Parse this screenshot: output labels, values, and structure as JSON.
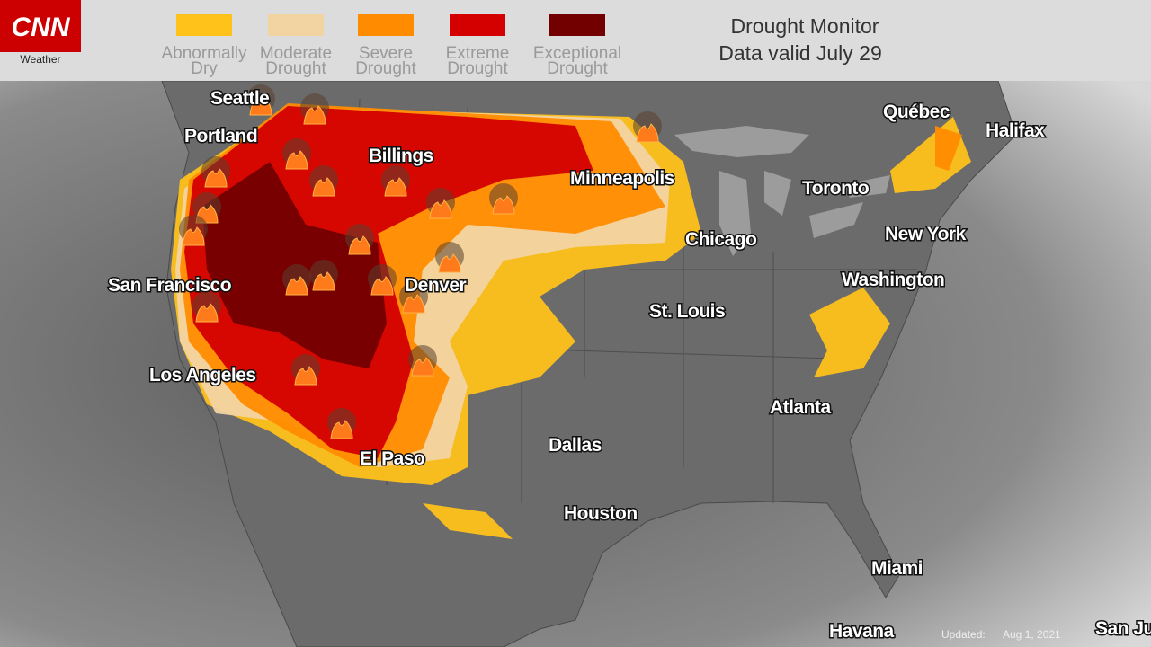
{
  "header": {
    "logo": "CNN",
    "logo_subtitle": "Weather",
    "title": "Drought Monitor",
    "subtitle": "Data valid July 29"
  },
  "legend": [
    {
      "lines": [
        "Abnormally",
        "Dry"
      ],
      "color": "#ffc21a"
    },
    {
      "lines": [
        "Moderate",
        "Drought"
      ],
      "color": "#f2d3a2"
    },
    {
      "lines": [
        "Severe",
        "Drought"
      ],
      "color": "#ff8c00"
    },
    {
      "lines": [
        "Extreme",
        "Drought"
      ],
      "color": "#d40000"
    },
    {
      "lines": [
        "Exceptional",
        "Drought"
      ],
      "color": "#730000"
    }
  ],
  "cities": [
    "Seattle",
    "Portland",
    "Billings",
    "Minneapolis",
    "Québec",
    "Halifax",
    "Toronto",
    "Chicago",
    "New York",
    "Washington",
    "San Francisco",
    "Denver",
    "St. Louis",
    "Los Angeles",
    "Atlanta",
    "Dallas",
    "El Paso",
    "Houston",
    "Miami",
    "Havana",
    "San Ju"
  ],
  "footer": {
    "updated_label": "Updated:",
    "updated_date": "Aug 1, 2021"
  }
}
